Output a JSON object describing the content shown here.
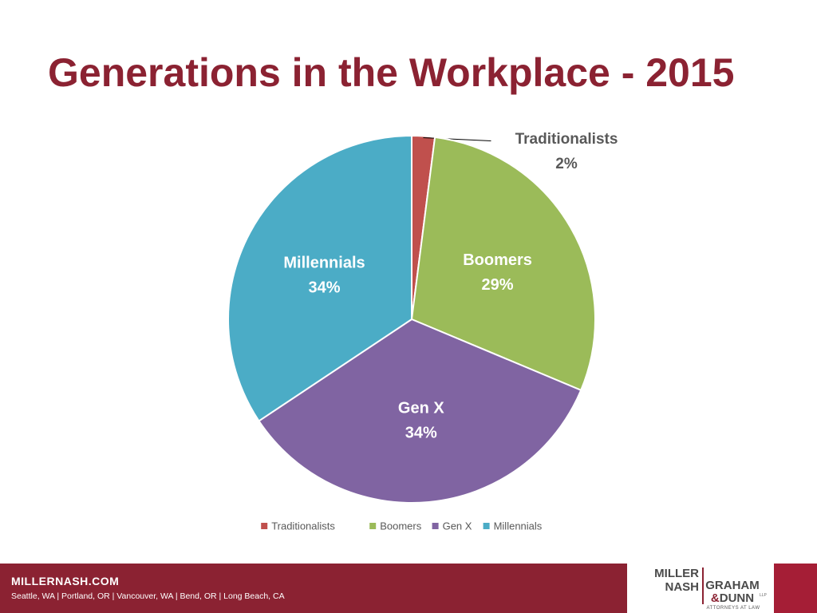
{
  "title": "Generations in the Workplace - 2015",
  "chart_data": {
    "type": "pie",
    "title": "",
    "slices": [
      {
        "name": "Traditionalists",
        "value": 2,
        "label": "2%",
        "color": "#c0504d"
      },
      {
        "name": "Boomers",
        "value": 29,
        "label": "29%",
        "color": "#9bbb59"
      },
      {
        "name": "Gen X",
        "value": 34,
        "label": "34%",
        "color": "#8064a2"
      },
      {
        "name": "Millennials",
        "value": 34,
        "label": "34%",
        "color": "#4bacc6"
      }
    ],
    "legend": {
      "position": "bottom",
      "entries": [
        "Traditionalists",
        "Boomers",
        "Gen X",
        "Millennials"
      ]
    },
    "label_color": "#ffffff",
    "callout_color": "#595959"
  },
  "footer": {
    "website": "MILLERNASH.COM",
    "offices": "Seattle, WA  |  Portland, OR  |  Vancouver, WA  |  Bend, OR  |  Long Beach, CA",
    "accent_color": "#8b2232"
  },
  "logo": {
    "line1": "MILLER",
    "line2": "NASH",
    "line3": "GRAHAM",
    "line4_amp": "&",
    "line4": "DUNN",
    "llp": "LLP",
    "tagline": "ATTORNEYS AT LAW"
  }
}
